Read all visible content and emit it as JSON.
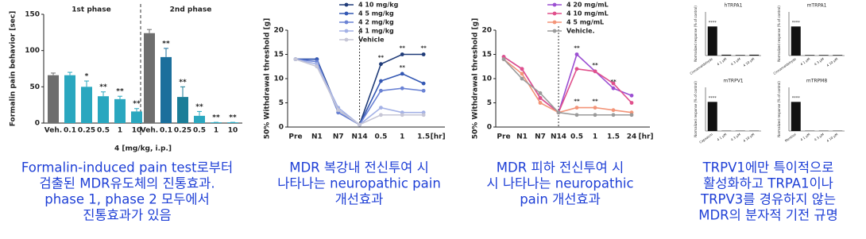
{
  "chart_data": [
    {
      "type": "bar",
      "y_label": "Formalin pain behavior [sec]",
      "x_label": "4 [mg/kg, i.p.]",
      "phase_labels": [
        "1st phase",
        "2nd phase"
      ],
      "categories": [
        "Veh.",
        "0.1",
        "0.25",
        "0.5",
        "1",
        "10",
        "Veh.",
        "0.1",
        "0.25",
        "0.5",
        "1",
        "10"
      ],
      "values": [
        66,
        66,
        50,
        37,
        33,
        16,
        124,
        91,
        36,
        10,
        1,
        1
      ],
      "errors": [
        3,
        4,
        8,
        6,
        4,
        4,
        5,
        12,
        14,
        6,
        0,
        0
      ],
      "annotations": [
        null,
        null,
        "*",
        "**",
        "**",
        "**",
        null,
        "**",
        "**",
        "**",
        "**",
        "**"
      ],
      "colors": [
        "#6e6e6e",
        "#2aa7bf",
        "#2aa7bf",
        "#2aa7bf",
        "#2aa7bf",
        "#2aa7bf",
        "#6e6e6e",
        "#1b6f9c",
        "#1b7e98",
        "#2aa7bf",
        "#2aa7bf",
        "#2aa7bf"
      ],
      "ylim": [
        0,
        150
      ],
      "yticks": [
        0,
        50,
        100,
        150
      ]
    },
    {
      "type": "line",
      "y_label": "50% Withdrawal threshold [g]",
      "x_unit": "[hr]",
      "categories": [
        "Pre",
        "N1",
        "N7",
        "N14",
        "0.5",
        "1",
        "1.5"
      ],
      "series": [
        {
          "name": "4 10 mg/kg",
          "color": "#1f3b78",
          "values": [
            14,
            14,
            3.5,
            0.5,
            13,
            15,
            15
          ],
          "annotations": [
            null,
            null,
            null,
            null,
            "**",
            "**",
            "**"
          ]
        },
        {
          "name": "4 5 mg/kg",
          "color": "#3458b4",
          "values": [
            14,
            14,
            3,
            0.5,
            9.5,
            11,
            9
          ],
          "annotations": [
            null,
            null,
            null,
            null,
            null,
            "**",
            null
          ]
        },
        {
          "name": "4 2 mg/kg",
          "color": "#6a82d4",
          "values": [
            14,
            13.5,
            3,
            0.5,
            7.5,
            8,
            7.5
          ],
          "annotations": null
        },
        {
          "name": "4 1 mg/kg",
          "color": "#a3b1e6",
          "values": [
            14,
            13,
            4,
            0.5,
            4,
            3,
            3
          ],
          "annotations": null
        },
        {
          "name": "Vehicle",
          "color": "#c6c6d6",
          "values": [
            14,
            12.5,
            3.5,
            0.5,
            2.5,
            2.5,
            2.5
          ],
          "annotations": null
        }
      ],
      "ylim": [
        0,
        20
      ],
      "yticks": [
        0,
        5,
        10,
        15,
        20
      ]
    },
    {
      "type": "line",
      "y_label": "50% Withdrawal threshold [g]",
      "x_unit": "[hr]",
      "categories": [
        "Pre",
        "N1",
        "N7",
        "N14",
        "0.5",
        "1",
        "1.5",
        "24"
      ],
      "series": [
        {
          "name": "4 20 mg/mL",
          "color": "#9b4fd2",
          "values": [
            14.5,
            12,
            6,
            3,
            15,
            11.5,
            8,
            6.5
          ],
          "annotations": [
            null,
            null,
            null,
            null,
            "**",
            "**",
            "**",
            null
          ]
        },
        {
          "name": "4 10 mg/mL",
          "color": "#e0508c",
          "values": [
            14.5,
            12,
            6,
            3,
            12,
            11.5,
            9,
            5
          ],
          "annotations": null
        },
        {
          "name": "4 5 mg/mL",
          "color": "#f39478",
          "values": [
            14,
            11,
            5,
            3,
            4,
            4,
            3.5,
            3
          ],
          "annotations": [
            null,
            null,
            null,
            null,
            "**",
            "**",
            null,
            null
          ]
        },
        {
          "name": "Vehicle.",
          "color": "#9a9a9a",
          "values": [
            14,
            10,
            7,
            3,
            2.5,
            2.5,
            2.5,
            2.5
          ],
          "annotations": null
        }
      ],
      "ylim": [
        0,
        20
      ],
      "yticks": [
        0,
        5,
        10,
        15,
        20
      ]
    },
    {
      "type": "multibar",
      "y_label": "Normalized response (% of control)",
      "ylim": [
        0,
        150
      ],
      "color": "#111111",
      "panels": [
        {
          "title": "hTRPA1",
          "categories": [
            "Cinnamaldehyde",
            "4 1 μM",
            "4 3 μM",
            "4 10 μM"
          ],
          "values": [
            100,
            3,
            2,
            3
          ],
          "annotations": [
            "****",
            null,
            null,
            null
          ]
        },
        {
          "title": "mTRPA1",
          "categories": [
            "Cinnamaldehyde",
            "4 1 μM",
            "4 3 μM",
            "4 10 μM"
          ],
          "values": [
            100,
            2,
            2,
            2
          ],
          "annotations": [
            "****",
            null,
            null,
            null
          ]
        },
        {
          "title": "mTRPV1",
          "categories": [
            "Capsaicin",
            "4 1 μM",
            "4 3 μM",
            "4 10 μM"
          ],
          "values": [
            100,
            1,
            1,
            1
          ],
          "annotations": [
            "****",
            null,
            null,
            null
          ]
        },
        {
          "title": "mTRPM8",
          "categories": [
            "Menthol",
            "4 1 μM",
            "4 3 μM",
            "4 10 μM"
          ],
          "values": [
            100,
            1,
            1,
            1
          ],
          "annotations": [
            "****",
            null,
            null,
            null
          ]
        }
      ]
    }
  ],
  "captions": [
    [
      "Formalin-induced pain test로부터",
      "검출된 MDR유도체의 진통효과.",
      "phase 1, phase 2 모두에서",
      "진통효과가 있음"
    ],
    [
      "MDR 복강내 전신투여 시",
      "나타나는 neuropathic pain",
      "개선효과"
    ],
    [
      "MDR 피하 전신투여 시",
      "시 나타나는 neuropathic",
      "pain 개선효과"
    ],
    [
      "TRPV1에만 특이적으로",
      "활성화하고 TRPA1이나",
      "TRPV3를 경유하지 않는",
      "MDR의 분자적 기전 규명"
    ]
  ]
}
